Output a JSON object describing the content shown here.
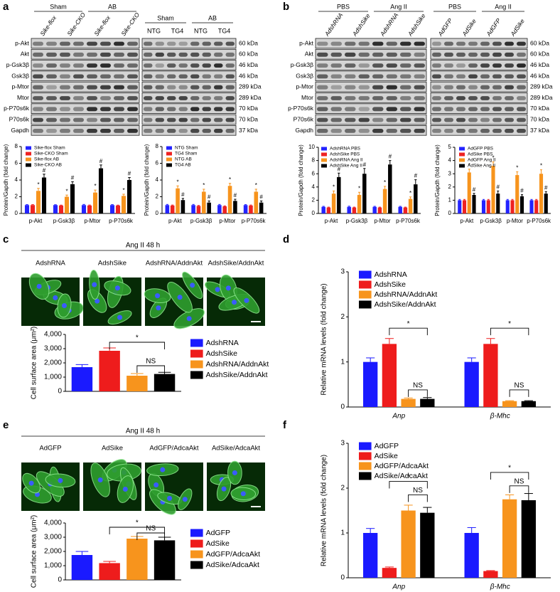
{
  "panel_labels": [
    "a",
    "b",
    "c",
    "d",
    "e",
    "f"
  ],
  "blots": [
    {
      "groups": [
        "Sham",
        "AB"
      ],
      "lanes": [
        "Sike-flox",
        "Sike-CKO",
        "Sike-flox",
        "Sike-CKO"
      ],
      "rows": [
        "p-Akt",
        "Akt",
        "p-Gsk3β",
        "Gsk3β",
        "p-Mtor",
        "Mtor",
        "p-P70s6k",
        "P70s6k",
        "Gapdh"
      ]
    },
    {
      "groups": [
        "Sham",
        "AB"
      ],
      "lanes": [
        "NTG",
        "TG4",
        "NTG",
        "TG4"
      ],
      "sizes": [
        "60 kDa",
        "60 kDa",
        "46 kDa",
        "46 kDa",
        "289 kDa",
        "289 kDa",
        "70 kDa",
        "70 kDa",
        "37 kDa"
      ]
    },
    {
      "groups": [
        "PBS",
        "Ang II"
      ],
      "lanes": [
        "AdshRNA",
        "AdshSike",
        "AdshRNA",
        "AdshSike"
      ],
      "rows": [
        "p-Akt",
        "Akt",
        "p-Gsk3β",
        "Gsk3β",
        "p-Mtor",
        "Mtor",
        "p-P70s6k",
        "P70s6k",
        "Gapdh"
      ]
    },
    {
      "groups": [
        "PBS",
        "Ang II"
      ],
      "lanes": [
        "AdGFP",
        "AdSike",
        "AdGFP",
        "AdSike"
      ],
      "sizes": [
        "60 kDa",
        "60 kDa",
        "46 kDa",
        "46 kDa",
        "289 kDa",
        "289 kDa",
        "70 kDa",
        "70 kDa",
        "37 kDa"
      ]
    }
  ],
  "micrographs": [
    {
      "title": "Ang II 48 h",
      "labels": [
        "AdshRNA",
        "AdshSike",
        "AdshRNA/AddnAkt",
        "AdshSike/AddnAkt"
      ]
    },
    {
      "title": "Ang II 48 h",
      "labels": [
        "AdGFP",
        "AdSike",
        "AdGFP/AdcaAkt",
        "AdSike/AdcaAkt"
      ]
    }
  ],
  "chart_data": [
    {
      "type": "bar",
      "ylabel": "Protein/Gapdh (fold change)",
      "ylim": [
        0,
        8
      ],
      "yticks": [
        0,
        2,
        4,
        6,
        8
      ],
      "categories": [
        "p-Akt",
        "p-Gsk3β",
        "p-Mtor",
        "p-P70s6k"
      ],
      "series": [
        {
          "name": "Sike-flox Sham",
          "color": "#2323ff",
          "values": [
            1,
            1,
            1,
            1
          ],
          "errors": [
            0.06,
            0.05,
            0.08,
            0.06
          ]
        },
        {
          "name": "Sike-CKO Sham",
          "color": "#ee2222",
          "values": [
            1,
            0.95,
            0.95,
            0.95
          ],
          "errors": [
            0.06,
            0.05,
            0.06,
            0.05
          ]
        },
        {
          "name": "Sike-flox AB",
          "color": "#f7941d",
          "values": [
            2.7,
            2,
            2.5,
            2.1
          ],
          "errors": [
            0.3,
            0.2,
            0.3,
            0.2
          ],
          "annotations": [
            "*",
            "*",
            "*",
            "*"
          ]
        },
        {
          "name": "Sike-CKO AB",
          "color": "#000000",
          "values": [
            4.3,
            3.5,
            5.4,
            4
          ],
          "errors": [
            0.4,
            0.3,
            0.4,
            0.3
          ],
          "annotations": [
            "#",
            "#",
            "#",
            "#"
          ]
        }
      ]
    },
    {
      "type": "bar",
      "ylabel": "Protein/Gapdh (fold change)",
      "ylim": [
        0,
        8
      ],
      "yticks": [
        0,
        2,
        4,
        6,
        8
      ],
      "categories": [
        "p-Akt",
        "p-Gsk3β",
        "p-Mtor",
        "p-P70s6k"
      ],
      "series": [
        {
          "name": "NTG Sham",
          "color": "#2323ff",
          "values": [
            1,
            1,
            1,
            1
          ],
          "errors": [
            0.08,
            0.08,
            0.08,
            0.06
          ]
        },
        {
          "name": "TG4 Sham",
          "color": "#ee2222",
          "values": [
            0.95,
            0.9,
            0.85,
            0.95
          ],
          "errors": [
            0.06,
            0.06,
            0.06,
            0.06
          ]
        },
        {
          "name": "NTG AB",
          "color": "#f7941d",
          "values": [
            3,
            2.6,
            3.3,
            2.6
          ],
          "errors": [
            0.3,
            0.3,
            0.3,
            0.3
          ],
          "annotations": [
            "*",
            "*",
            "*",
            "*"
          ]
        },
        {
          "name": "TG4 AB",
          "color": "#000000",
          "values": [
            1.6,
            1.3,
            1.5,
            1.3
          ],
          "errors": [
            0.2,
            0.2,
            0.2,
            0.2
          ],
          "annotations": [
            "#",
            "#",
            "#",
            "#"
          ]
        }
      ]
    },
    {
      "type": "bar",
      "ylabel": "Protein/Gapdh (fold change)",
      "ylim": [
        0,
        10
      ],
      "yticks": [
        0,
        2,
        4,
        6,
        8,
        10
      ],
      "categories": [
        "p-Akt",
        "p-Gsk3β",
        "p-Mtor",
        "p-P70s6k"
      ],
      "series": [
        {
          "name": "AdshRNA PBS",
          "color": "#2323ff",
          "values": [
            1,
            1,
            1,
            1
          ],
          "errors": [
            0.08,
            0.1,
            0.08,
            0.08
          ]
        },
        {
          "name": "AdshSike PBS",
          "color": "#ee2222",
          "values": [
            0.9,
            0.9,
            0.9,
            0.9
          ],
          "errors": [
            0.06,
            0.06,
            0.06,
            0.06
          ]
        },
        {
          "name": "AdshRNA Ang II",
          "color": "#f7941d",
          "values": [
            3,
            2.8,
            3.7,
            2.2
          ],
          "errors": [
            0.4,
            0.4,
            0.4,
            0.3
          ],
          "annotations": [
            "*",
            "*",
            "*",
            "*"
          ]
        },
        {
          "name": "AdshSike Ang II",
          "color": "#000000",
          "values": [
            5.5,
            6,
            7.4,
            4.4
          ],
          "errors": [
            0.6,
            0.8,
            0.6,
            0.7
          ],
          "annotations": [
            "#",
            "#",
            "#",
            "#"
          ]
        }
      ]
    },
    {
      "type": "bar",
      "ylabel": "Protein/Gapdh (fold change)",
      "ylim": [
        0,
        5
      ],
      "yticks": [
        0,
        1,
        2,
        3,
        4,
        5
      ],
      "categories": [
        "p-Akt",
        "p-Gsk3β",
        "p-Mtor",
        "p-P70s6k"
      ],
      "series": [
        {
          "name": "AdGFP PBS",
          "color": "#2323ff",
          "values": [
            1,
            1,
            1,
            1
          ],
          "errors": [
            0.06,
            0.06,
            0.06,
            0.06
          ]
        },
        {
          "name": "AdSike PBS",
          "color": "#ee2222",
          "values": [
            1,
            1,
            1,
            1
          ],
          "errors": [
            0.06,
            0.06,
            0.06,
            0.06
          ]
        },
        {
          "name": "AdGFP Ang II",
          "color": "#f7941d",
          "values": [
            3.1,
            3.6,
            2.9,
            3
          ],
          "errors": [
            0.25,
            0.3,
            0.25,
            0.3
          ],
          "annotations": [
            "*",
            "*",
            "*",
            "*"
          ]
        },
        {
          "name": "AdSike Ang II",
          "color": "#000000",
          "values": [
            1.4,
            1.5,
            1.3,
            1.5
          ],
          "errors": [
            0.12,
            0.2,
            0.12,
            0.15
          ],
          "annotations": [
            "#",
            "#",
            "#",
            "#"
          ]
        }
      ]
    },
    {
      "type": "bar",
      "ylabel": "Cell surface area (μm²)",
      "ylim": [
        0,
        4000
      ],
      "yticks": [
        0,
        {
          "value": 1000,
          "label": "1,000"
        },
        {
          "value": 2000,
          "label": "2,000"
        },
        {
          "value": 3000,
          "label": "3,000"
        },
        {
          "value": 4000,
          "label": "4,000"
        }
      ],
      "categories": [
        null
      ],
      "series": [
        {
          "name": "AdshRNA",
          "color": "#1a1aff",
          "values": [
            1700
          ],
          "errors": [
            180
          ]
        },
        {
          "name": "AdshSike",
          "color": "#ee1c1c",
          "values": [
            2850
          ],
          "errors": [
            200
          ]
        },
        {
          "name": "AdshRNA/AddnAkt",
          "color": "#f7941d",
          "values": [
            1100
          ],
          "errors": [
            150
          ]
        },
        {
          "name": "AdshSike/AddnAkt",
          "color": "#000000",
          "values": [
            1220
          ],
          "errors": [
            120
          ]
        }
      ],
      "significance": [
        "*",
        "NS"
      ]
    },
    {
      "type": "bar",
      "ylabel": "Relative mRNA levels (fold change)",
      "ylim": [
        0,
        3
      ],
      "yticks": [
        0,
        1,
        2,
        3
      ],
      "categories": [
        "Anp",
        "β-Mhc"
      ],
      "series": [
        {
          "name": "AdshRNA",
          "color": "#1a1aff",
          "values": [
            1,
            1
          ],
          "errors": [
            0.09,
            0.09
          ]
        },
        {
          "name": "AdshSike",
          "color": "#ee1c1c",
          "values": [
            1.4,
            1.4
          ],
          "errors": [
            0.12,
            0.12
          ]
        },
        {
          "name": "AdshRNA/AddnAkt",
          "color": "#f7941d",
          "values": [
            0.18,
            0.13
          ],
          "errors": [
            0.02,
            0.01
          ]
        },
        {
          "name": "AdshSike/AddnAkt",
          "color": "#000000",
          "values": [
            0.18,
            0.13
          ],
          "errors": [
            0.03,
            0.01
          ]
        }
      ],
      "significance": [
        "*",
        "NS",
        "*",
        "NS"
      ]
    },
    {
      "type": "bar",
      "ylabel": "Cell surface area (μm²)",
      "ylim": [
        0,
        4000
      ],
      "yticks": [
        0,
        {
          "value": 1000,
          "label": "1,000"
        },
        {
          "value": 2000,
          "label": "2,000"
        },
        {
          "value": 3000,
          "label": "3,000"
        },
        {
          "value": 4000,
          "label": "4,000"
        }
      ],
      "categories": [
        null
      ],
      "series": [
        {
          "name": "AdGFP",
          "color": "#1a1aff",
          "values": [
            1750
          ],
          "errors": [
            250
          ]
        },
        {
          "name": "AdSike",
          "color": "#ee1c1c",
          "values": [
            1180
          ],
          "errors": [
            120
          ]
        },
        {
          "name": "AdGFP/AdcaAkt",
          "color": "#f7941d",
          "values": [
            2900
          ],
          "errors": [
            150
          ]
        },
        {
          "name": "AdSike/AdcaAkt",
          "color": "#000000",
          "values": [
            2780
          ],
          "errors": [
            220
          ]
        }
      ],
      "significance": [
        "*",
        "NS"
      ]
    },
    {
      "type": "bar",
      "ylabel": "Relative mRNA levels (fold change)",
      "ylim": [
        0,
        3
      ],
      "yticks": [
        0,
        1,
        2,
        3
      ],
      "categories": [
        "Anp",
        "β-Mhc"
      ],
      "series": [
        {
          "name": "AdGFP",
          "color": "#1a1aff",
          "values": [
            1,
            1
          ],
          "errors": [
            0.1,
            0.12
          ]
        },
        {
          "name": "AdSike",
          "color": "#ee1c1c",
          "values": [
            0.22,
            0.15
          ],
          "errors": [
            0.02,
            0.01
          ]
        },
        {
          "name": "AdGFP/AdcaAkt",
          "color": "#f7941d",
          "values": [
            1.5,
            1.75
          ],
          "errors": [
            0.12,
            0.1
          ]
        },
        {
          "name": "AdSike/AdcaAkt",
          "color": "#000000",
          "values": [
            1.45,
            1.73
          ],
          "errors": [
            0.12,
            0.15
          ]
        }
      ],
      "significance": [
        "*",
        "NS",
        "*",
        "NS"
      ]
    }
  ]
}
